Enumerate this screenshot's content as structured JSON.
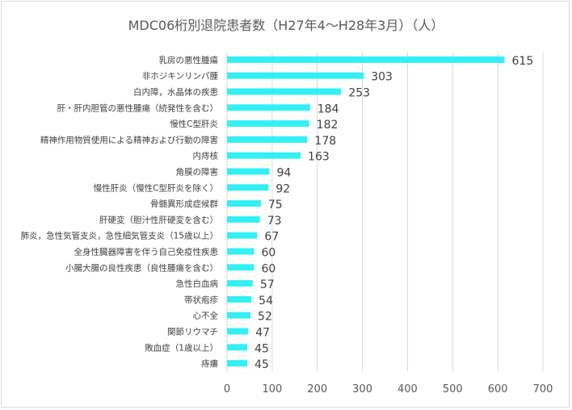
{
  "chart_data": {
    "type": "bar",
    "orientation": "horizontal",
    "title": "MDC06桁別退院患者数（H27年4～H28年3月）（人）",
    "categories": [
      "乳房の悪性腫瘍",
      "非ホジキンリンパ腫",
      "白内障，水晶体の疾患",
      "肝・肝内胆管の悪性腫瘍（続発性を含む）",
      "慢性C型肝炎",
      "精神作用物質使用による精神および行動の障害",
      "内痔核",
      "角膜の障害",
      "慢性肝炎（慢性C型肝炎を除く）",
      "骨髄異形成症候群",
      "肝硬変（胆汁性肝硬変を含む）",
      "肺炎，急性気管支炎，急性細気管支炎（15歳以上）",
      "全身性臓器障害を伴う自己免疫性疾患",
      "小腸大腸の良性疾患（良性腫瘍を含む）",
      "急性白血病",
      "帯状疱疹",
      "心不全",
      "関節リウマチ",
      "敗血症（1歳以上）",
      "痔瘻"
    ],
    "values": [
      615,
      303,
      253,
      184,
      182,
      178,
      163,
      94,
      92,
      75,
      73,
      67,
      60,
      60,
      57,
      54,
      52,
      47,
      45,
      45
    ],
    "xlim": [
      0,
      700
    ],
    "ticks": [
      0,
      100,
      200,
      300,
      400,
      500,
      600,
      700
    ],
    "grid": true,
    "bar_color": "#33f0f7",
    "grid_color": "#d9d9d9"
  }
}
